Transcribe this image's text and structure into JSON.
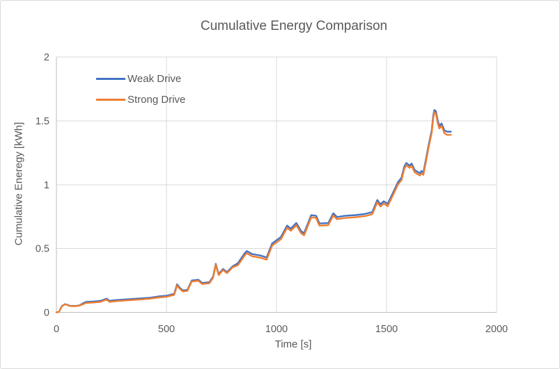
{
  "palette": {
    "background": "#ffffff",
    "frame_border": "#d9d9d9",
    "grid_color": "#d9d9d9",
    "axis_color": "#bfbfbf",
    "text_color": "#595959",
    "weak_drive_color": "#4472C4",
    "strong_drive_color": "#ED7D31"
  },
  "chart_data": {
    "type": "line",
    "title": "Cumulative Energy Comparison",
    "xlabel": "Time [s]",
    "ylabel": "Cumulative Eneregy [kWh]",
    "xlim": [
      0,
      2000
    ],
    "ylim": [
      0,
      2
    ],
    "x_ticks": [
      0,
      500,
      1000,
      1500,
      2000
    ],
    "y_ticks": [
      0,
      0.5,
      1,
      1.5,
      2
    ],
    "grid": true,
    "legend_position": "top-left-inside",
    "series": [
      {
        "name": "Weak Drive",
        "color": "#4472C4",
        "points": [
          [
            0,
            0
          ],
          [
            12,
            0.005
          ],
          [
            25,
            0.05
          ],
          [
            40,
            0.065
          ],
          [
            60,
            0.052
          ],
          [
            85,
            0.05
          ],
          [
            105,
            0.055
          ],
          [
            120,
            0.07
          ],
          [
            135,
            0.082
          ],
          [
            165,
            0.085
          ],
          [
            200,
            0.09
          ],
          [
            228,
            0.108
          ],
          [
            242,
            0.09
          ],
          [
            265,
            0.095
          ],
          [
            305,
            0.1
          ],
          [
            345,
            0.105
          ],
          [
            385,
            0.11
          ],
          [
            425,
            0.115
          ],
          [
            465,
            0.125
          ],
          [
            500,
            0.13
          ],
          [
            535,
            0.145
          ],
          [
            548,
            0.22
          ],
          [
            562,
            0.19
          ],
          [
            575,
            0.172
          ],
          [
            595,
            0.176
          ],
          [
            615,
            0.25
          ],
          [
            645,
            0.255
          ],
          [
            662,
            0.23
          ],
          [
            695,
            0.236
          ],
          [
            712,
            0.28
          ],
          [
            724,
            0.38
          ],
          [
            737,
            0.3
          ],
          [
            757,
            0.34
          ],
          [
            775,
            0.315
          ],
          [
            800,
            0.36
          ],
          [
            825,
            0.386
          ],
          [
            855,
            0.462
          ],
          [
            865,
            0.48
          ],
          [
            890,
            0.456
          ],
          [
            925,
            0.446
          ],
          [
            955,
            0.43
          ],
          [
            980,
            0.54
          ],
          [
            1000,
            0.565
          ],
          [
            1020,
            0.59
          ],
          [
            1048,
            0.68
          ],
          [
            1065,
            0.656
          ],
          [
            1090,
            0.7
          ],
          [
            1112,
            0.636
          ],
          [
            1125,
            0.62
          ],
          [
            1158,
            0.762
          ],
          [
            1180,
            0.756
          ],
          [
            1195,
            0.696
          ],
          [
            1235,
            0.7
          ],
          [
            1258,
            0.776
          ],
          [
            1275,
            0.746
          ],
          [
            1310,
            0.756
          ],
          [
            1360,
            0.762
          ],
          [
            1400,
            0.77
          ],
          [
            1435,
            0.786
          ],
          [
            1458,
            0.88
          ],
          [
            1472,
            0.846
          ],
          [
            1487,
            0.87
          ],
          [
            1505,
            0.85
          ],
          [
            1530,
            0.94
          ],
          [
            1552,
            1.02
          ],
          [
            1568,
            1.055
          ],
          [
            1580,
            1.14
          ],
          [
            1590,
            1.17
          ],
          [
            1604,
            1.15
          ],
          [
            1614,
            1.165
          ],
          [
            1628,
            1.115
          ],
          [
            1641,
            1.1
          ],
          [
            1651,
            1.09
          ],
          [
            1659,
            1.107
          ],
          [
            1667,
            1.095
          ],
          [
            1678,
            1.19
          ],
          [
            1690,
            1.3
          ],
          [
            1705,
            1.425
          ],
          [
            1712,
            1.54
          ],
          [
            1717,
            1.585
          ],
          [
            1724,
            1.575
          ],
          [
            1733,
            1.5
          ],
          [
            1740,
            1.46
          ],
          [
            1750,
            1.48
          ],
          [
            1757,
            1.45
          ],
          [
            1763,
            1.425
          ],
          [
            1775,
            1.415
          ],
          [
            1792,
            1.415
          ]
        ]
      },
      {
        "name": "Strong Drive",
        "color": "#ED7D31",
        "points": [
          [
            0,
            0
          ],
          [
            12,
            0.005
          ],
          [
            25,
            0.048
          ],
          [
            40,
            0.063
          ],
          [
            60,
            0.05
          ],
          [
            85,
            0.048
          ],
          [
            105,
            0.053
          ],
          [
            120,
            0.063
          ],
          [
            135,
            0.074
          ],
          [
            165,
            0.077
          ],
          [
            200,
            0.082
          ],
          [
            228,
            0.1
          ],
          [
            242,
            0.082
          ],
          [
            265,
            0.087
          ],
          [
            305,
            0.092
          ],
          [
            345,
            0.097
          ],
          [
            385,
            0.102
          ],
          [
            425,
            0.107
          ],
          [
            465,
            0.117
          ],
          [
            500,
            0.122
          ],
          [
            535,
            0.137
          ],
          [
            548,
            0.21
          ],
          [
            562,
            0.182
          ],
          [
            575,
            0.164
          ],
          [
            595,
            0.168
          ],
          [
            615,
            0.242
          ],
          [
            645,
            0.247
          ],
          [
            662,
            0.222
          ],
          [
            695,
            0.228
          ],
          [
            712,
            0.272
          ],
          [
            724,
            0.372
          ],
          [
            737,
            0.292
          ],
          [
            757,
            0.332
          ],
          [
            775,
            0.307
          ],
          [
            800,
            0.352
          ],
          [
            825,
            0.37
          ],
          [
            855,
            0.445
          ],
          [
            865,
            0.463
          ],
          [
            890,
            0.439
          ],
          [
            925,
            0.429
          ],
          [
            955,
            0.413
          ],
          [
            980,
            0.523
          ],
          [
            1000,
            0.548
          ],
          [
            1020,
            0.573
          ],
          [
            1048,
            0.663
          ],
          [
            1065,
            0.639
          ],
          [
            1090,
            0.683
          ],
          [
            1112,
            0.619
          ],
          [
            1125,
            0.603
          ],
          [
            1158,
            0.745
          ],
          [
            1180,
            0.739
          ],
          [
            1195,
            0.679
          ],
          [
            1235,
            0.683
          ],
          [
            1258,
            0.759
          ],
          [
            1275,
            0.729
          ],
          [
            1310,
            0.739
          ],
          [
            1360,
            0.745
          ],
          [
            1400,
            0.753
          ],
          [
            1435,
            0.769
          ],
          [
            1458,
            0.863
          ],
          [
            1472,
            0.829
          ],
          [
            1487,
            0.853
          ],
          [
            1505,
            0.832
          ],
          [
            1530,
            0.922
          ],
          [
            1552,
            1.002
          ],
          [
            1568,
            1.037
          ],
          [
            1580,
            1.122
          ],
          [
            1590,
            1.152
          ],
          [
            1604,
            1.132
          ],
          [
            1614,
            1.147
          ],
          [
            1628,
            1.097
          ],
          [
            1641,
            1.082
          ],
          [
            1651,
            1.072
          ],
          [
            1659,
            1.089
          ],
          [
            1667,
            1.077
          ],
          [
            1678,
            1.172
          ],
          [
            1690,
            1.282
          ],
          [
            1705,
            1.405
          ],
          [
            1712,
            1.52
          ],
          [
            1717,
            1.567
          ],
          [
            1724,
            1.555
          ],
          [
            1733,
            1.48
          ],
          [
            1740,
            1.44
          ],
          [
            1750,
            1.46
          ],
          [
            1757,
            1.43
          ],
          [
            1763,
            1.403
          ],
          [
            1775,
            1.39
          ],
          [
            1792,
            1.39
          ]
        ]
      }
    ]
  }
}
